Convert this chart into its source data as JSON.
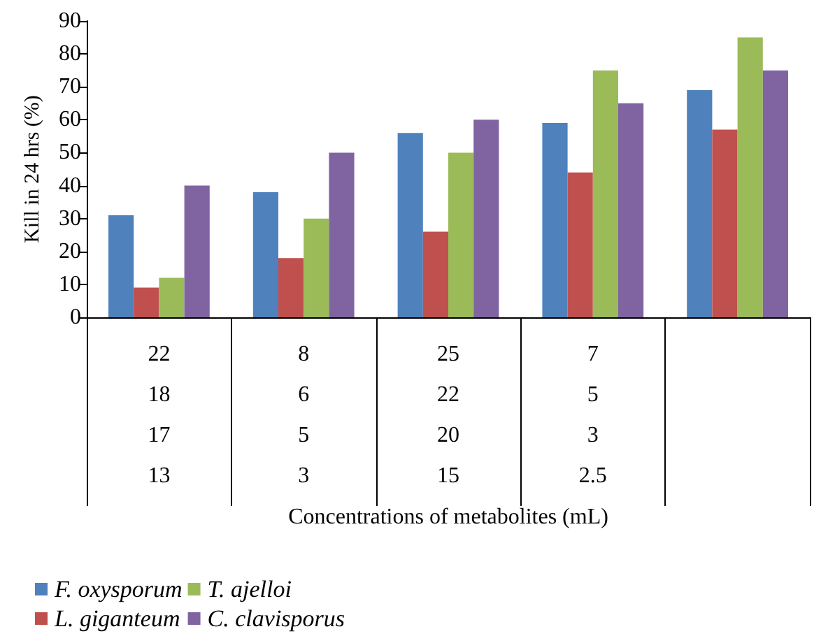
{
  "chart_data": {
    "type": "bar",
    "xlabel": "Concentrations of metabolites (mL)",
    "ylabel": "Kill in 24 hrs (%)",
    "categories": [
      "22\n18\n17\n13",
      "8\n6\n5\n3",
      "25\n22\n20\n15",
      "7\n5\n3\n2.5",
      null
    ],
    "series": [
      {
        "name": "F. oxysporum",
        "color": "#4f81bd",
        "values": [
          31,
          38,
          56,
          59,
          69
        ]
      },
      {
        "name": "L. giganteum",
        "color": "#c0504d",
        "values": [
          9,
          18,
          26,
          44,
          57
        ]
      },
      {
        "name": "T. ajelloi",
        "color": "#9bbb59",
        "values": [
          12,
          30,
          50,
          75,
          85
        ]
      },
      {
        "name": "C. clavisporus",
        "color": "#8064a2",
        "values": [
          40,
          50,
          60,
          65,
          75
        ]
      }
    ],
    "ylim": [
      0,
      90
    ],
    "yticks": [
      0,
      10,
      20,
      30,
      40,
      50,
      60,
      70,
      80,
      90
    ],
    "grid": false,
    "legend": "bottom"
  }
}
